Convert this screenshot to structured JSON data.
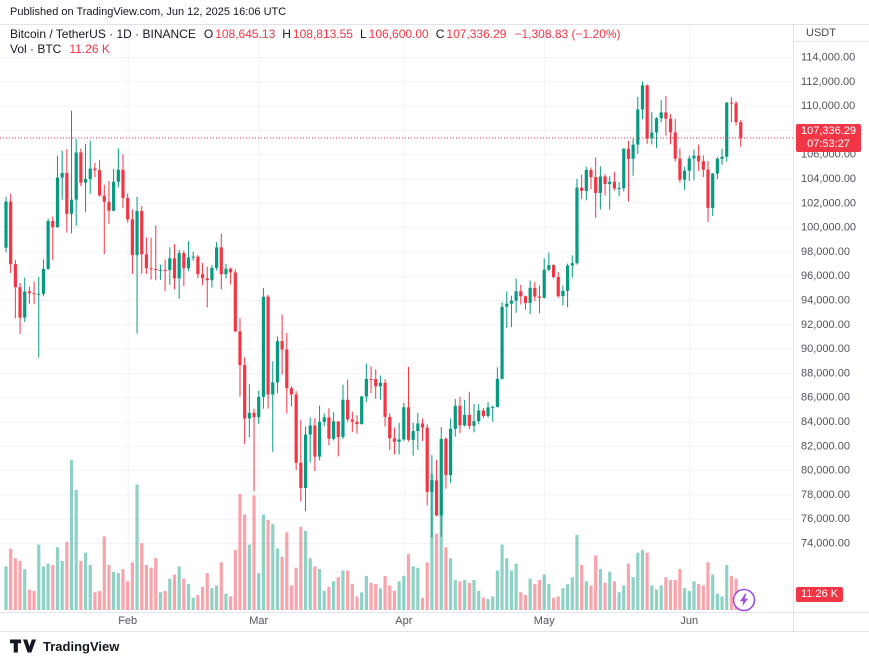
{
  "published_bar": {
    "text": "Published on TradingView.com, Jun 12, 2025 16:06 UTC"
  },
  "legend": {
    "title": "Bitcoin / TetherUS · 1D · BINANCE",
    "ohlc": [
      {
        "label": "O",
        "value": "108,645.13"
      },
      {
        "label": "H",
        "value": "108,813.55"
      },
      {
        "label": "L",
        "value": "106,600.00"
      },
      {
        "label": "C",
        "value": "107,336.29"
      }
    ],
    "change": "−1,308.83 (−1.20%)",
    "volume_label": "Vol · BTC",
    "volume_value": "11.26 K"
  },
  "axis": {
    "currency": "USDT",
    "price_badge": {
      "price": "107,336.29",
      "countdown": "07:53:27"
    },
    "volume_badge": "11.26 K"
  },
  "footer": {
    "brand": "TradingView"
  },
  "colors": {
    "up": "#089981",
    "down": "#F23645",
    "badge": "#F23645",
    "grid": "#f0f3fa",
    "separator": "#e0e3eb",
    "axis_text": "#50535E",
    "text": "#131722",
    "boost": "#9c4ddc"
  },
  "chart_data": {
    "type": "candlestick+volume",
    "title": "Bitcoin / TetherUS · 1D · BINANCE",
    "price_line": 107336.29,
    "y_axis": {
      "min": 74000,
      "max": 114000,
      "step": 2000,
      "unit": "USDT"
    },
    "x_ticks": [
      {
        "label": "Feb",
        "index": 26
      },
      {
        "label": "Mar",
        "index": 54
      },
      {
        "label": "Apr",
        "index": 85
      },
      {
        "label": "May",
        "index": 115
      },
      {
        "label": "Jun",
        "index": 146
      }
    ],
    "volume_in_thousands_btc": true,
    "last_volume_label": "11.26 K",
    "candles": [
      [
        98300,
        102500,
        97920,
        102100,
        32
      ],
      [
        102100,
        102750,
        96200,
        96950,
        45
      ],
      [
        96950,
        97300,
        92500,
        95050,
        38
      ],
      [
        95050,
        95400,
        91200,
        92550,
        36
      ],
      [
        92550,
        95850,
        92200,
        94700,
        30
      ],
      [
        94700,
        95100,
        93700,
        94560,
        15
      ],
      [
        94560,
        95500,
        93650,
        94500,
        14
      ],
      [
        94500,
        95900,
        89260,
        94510,
        48
      ],
      [
        94510,
        97350,
        94300,
        96560,
        32
      ],
      [
        96560,
        100700,
        96500,
        100500,
        34
      ],
      [
        100500,
        100870,
        97300,
        99990,
        33
      ],
      [
        99990,
        105860,
        99950,
        104080,
        46
      ],
      [
        104080,
        106300,
        102260,
        104450,
        36
      ],
      [
        104450,
        106420,
        99550,
        101090,
        50
      ],
      [
        101090,
        109580,
        99500,
        102260,
        110
      ],
      [
        102260,
        107240,
        100100,
        106140,
        88
      ],
      [
        106140,
        106450,
        103360,
        103650,
        36
      ],
      [
        103650,
        106850,
        101250,
        103960,
        42
      ],
      [
        103960,
        107120,
        102750,
        104820,
        33
      ],
      [
        104820,
        105300,
        104100,
        104680,
        13
      ],
      [
        104680,
        105500,
        102520,
        102600,
        14
      ],
      [
        102600,
        103480,
        97780,
        102080,
        54
      ],
      [
        102080,
        103800,
        100280,
        101340,
        33
      ],
      [
        101340,
        104800,
        101300,
        103730,
        28
      ],
      [
        103730,
        106460,
        103270,
        104720,
        27
      ],
      [
        104720,
        106000,
        101560,
        102400,
        30
      ],
      [
        102400,
        102780,
        100400,
        100640,
        21
      ],
      [
        100640,
        101460,
        96150,
        97690,
        35
      ],
      [
        97690,
        102500,
        91230,
        101330,
        92
      ],
      [
        101330,
        101740,
        96150,
        97760,
        49
      ],
      [
        97760,
        99150,
        96150,
        96610,
        33
      ],
      [
        96610,
        99120,
        95680,
        96550,
        31
      ],
      [
        96550,
        100140,
        95620,
        96460,
        38
      ],
      [
        96460,
        96900,
        95660,
        96480,
        13
      ],
      [
        96480,
        97330,
        94710,
        96470,
        14
      ],
      [
        96470,
        98350,
        95250,
        97430,
        23
      ],
      [
        97430,
        98590,
        94880,
        95780,
        26
      ],
      [
        95780,
        98120,
        94090,
        97860,
        32
      ],
      [
        97860,
        98080,
        95150,
        96610,
        23
      ],
      [
        96610,
        98840,
        96380,
        97500,
        19
      ],
      [
        97500,
        97970,
        97240,
        97570,
        9
      ],
      [
        97570,
        97700,
        95780,
        96120,
        11
      ],
      [
        96120,
        97040,
        95230,
        95780,
        17
      ],
      [
        95780,
        96750,
        93390,
        95630,
        27
      ],
      [
        95630,
        96880,
        95030,
        96640,
        16
      ],
      [
        96640,
        98770,
        96420,
        98330,
        18
      ],
      [
        98330,
        99470,
        94880,
        96120,
        35
      ],
      [
        96120,
        96960,
        95770,
        96580,
        12
      ],
      [
        96580,
        96670,
        95260,
        96270,
        10
      ],
      [
        96270,
        96500,
        91360,
        91420,
        44
      ],
      [
        91420,
        92500,
        86050,
        88640,
        85
      ],
      [
        88640,
        89300,
        82150,
        84250,
        70
      ],
      [
        84250,
        87070,
        82720,
        84710,
        48
      ],
      [
        84710,
        85050,
        78250,
        84350,
        84
      ],
      [
        84350,
        86530,
        83800,
        86030,
        27
      ],
      [
        86030,
        95000,
        85050,
        94270,
        70
      ],
      [
        94270,
        94420,
        85060,
        86220,
        66
      ],
      [
        86220,
        88960,
        81500,
        87220,
        63
      ],
      [
        87220,
        91000,
        86330,
        90620,
        45
      ],
      [
        90620,
        92810,
        87860,
        89930,
        39
      ],
      [
        89930,
        91280,
        84670,
        86740,
        57
      ],
      [
        86740,
        86890,
        85220,
        86220,
        18
      ],
      [
        86220,
        86500,
        80000,
        80600,
        31
      ],
      [
        80600,
        84120,
        77420,
        78530,
        61
      ],
      [
        78530,
        83600,
        76620,
        82930,
        58
      ],
      [
        82930,
        84340,
        80610,
        83670,
        38
      ],
      [
        83670,
        84280,
        79930,
        81110,
        32
      ],
      [
        81110,
        85310,
        80810,
        83970,
        30
      ],
      [
        83970,
        84670,
        83610,
        84340,
        14
      ],
      [
        84340,
        85100,
        82050,
        82580,
        17
      ],
      [
        82580,
        84760,
        82440,
        84010,
        21
      ],
      [
        84010,
        84020,
        81130,
        82720,
        24
      ],
      [
        82720,
        87030,
        82550,
        85790,
        29
      ],
      [
        85790,
        87450,
        83970,
        84170,
        29
      ],
      [
        84170,
        84800,
        83150,
        83980,
        19
      ],
      [
        83980,
        84500,
        83000,
        83790,
        10
      ],
      [
        83790,
        86100,
        83740,
        86060,
        13
      ],
      [
        86060,
        88770,
        85600,
        87500,
        25
      ],
      [
        87500,
        88540,
        86330,
        87490,
        20
      ],
      [
        87490,
        88290,
        85860,
        86900,
        19
      ],
      [
        86900,
        87790,
        85800,
        87190,
        16
      ],
      [
        87190,
        87490,
        83580,
        84380,
        25
      ],
      [
        84380,
        84680,
        81640,
        82620,
        18
      ],
      [
        82620,
        83510,
        81290,
        82330,
        14
      ],
      [
        82330,
        83880,
        81280,
        82520,
        21
      ],
      [
        82520,
        85550,
        82410,
        85170,
        25
      ],
      [
        85170,
        88500,
        82350,
        82490,
        41
      ],
      [
        82490,
        83900,
        81200,
        83210,
        32
      ],
      [
        83210,
        84720,
        81660,
        83840,
        31
      ],
      [
        83840,
        84250,
        82380,
        83500,
        9
      ],
      [
        83500,
        83770,
        77100,
        78210,
        35
      ],
      [
        78210,
        81240,
        74420,
        79160,
        100
      ],
      [
        79160,
        80820,
        76200,
        76270,
        56
      ],
      [
        76270,
        83540,
        74510,
        82570,
        85
      ],
      [
        82570,
        82700,
        78460,
        79590,
        46
      ],
      [
        79590,
        84250,
        78940,
        83400,
        38
      ],
      [
        83400,
        85860,
        82750,
        85290,
        22
      ],
      [
        85290,
        86010,
        83030,
        83680,
        21
      ],
      [
        83680,
        85780,
        83600,
        84540,
        22
      ],
      [
        84540,
        86450,
        83370,
        83640,
        20
      ],
      [
        83640,
        85440,
        83110,
        84030,
        22
      ],
      [
        84030,
        85430,
        83760,
        84900,
        14
      ],
      [
        84900,
        85120,
        84290,
        84450,
        9
      ],
      [
        84450,
        85600,
        84310,
        85160,
        8
      ],
      [
        85160,
        85310,
        83980,
        85200,
        10
      ],
      [
        85200,
        88450,
        85150,
        87510,
        29
      ],
      [
        87510,
        93820,
        87460,
        93440,
        48
      ],
      [
        93440,
        94720,
        91690,
        93700,
        38
      ],
      [
        93700,
        94350,
        91770,
        93940,
        29
      ],
      [
        93940,
        95770,
        92950,
        94720,
        34
      ],
      [
        94720,
        95250,
        93630,
        94310,
        13
      ],
      [
        94310,
        94360,
        93200,
        93750,
        11
      ],
      [
        93750,
        95600,
        92830,
        95000,
        23
      ],
      [
        95000,
        95490,
        93900,
        94280,
        19
      ],
      [
        94280,
        95200,
        92910,
        94180,
        22
      ],
      [
        94180,
        97440,
        94120,
        96490,
        26
      ],
      [
        96490,
        97910,
        96370,
        96870,
        19
      ],
      [
        96870,
        96940,
        95790,
        95890,
        9
      ],
      [
        95890,
        96300,
        94180,
        94320,
        10
      ],
      [
        94320,
        95200,
        93570,
        94750,
        16
      ],
      [
        94750,
        97000,
        93390,
        96840,
        19
      ],
      [
        96840,
        97680,
        95830,
        97030,
        24
      ],
      [
        97030,
        103970,
        96910,
        103250,
        55
      ],
      [
        103250,
        104320,
        102310,
        102970,
        33
      ],
      [
        102970,
        104960,
        102200,
        104700,
        21
      ],
      [
        104700,
        104900,
        103110,
        104110,
        18
      ],
      [
        104110,
        105740,
        100750,
        102810,
        40
      ],
      [
        102810,
        104990,
        101450,
        104170,
        30
      ],
      [
        104170,
        104350,
        102600,
        103540,
        20
      ],
      [
        103540,
        104180,
        101430,
        103740,
        28
      ],
      [
        103740,
        104550,
        103010,
        103190,
        21
      ],
      [
        103190,
        103720,
        102540,
        103210,
        13
      ],
      [
        103210,
        106480,
        102940,
        106450,
        18
      ],
      [
        106450,
        107110,
        102100,
        105620,
        34
      ],
      [
        105620,
        107310,
        104230,
        106790,
        24
      ],
      [
        106790,
        110720,
        106020,
        109680,
        42
      ],
      [
        109680,
        111980,
        108880,
        111670,
        44
      ],
      [
        111670,
        111740,
        106850,
        107290,
        42
      ],
      [
        107290,
        109460,
        106800,
        107790,
        18
      ],
      [
        107790,
        109060,
        106520,
        108960,
        15
      ],
      [
        108960,
        110450,
        108620,
        109440,
        18
      ],
      [
        109440,
        110790,
        107520,
        108920,
        24
      ],
      [
        108920,
        109300,
        106810,
        107800,
        22
      ],
      [
        107800,
        108910,
        105400,
        105640,
        22
      ],
      [
        105640,
        106470,
        103660,
        103900,
        30
      ],
      [
        103900,
        104980,
        103050,
        104640,
        16
      ],
      [
        104640,
        105900,
        103790,
        105650,
        14
      ],
      [
        105650,
        106380,
        103860,
        105880,
        21
      ],
      [
        105880,
        106790,
        104610,
        105420,
        19
      ],
      [
        105420,
        105910,
        104110,
        104730,
        18
      ],
      [
        104730,
        105440,
        100420,
        101580,
        35
      ],
      [
        101580,
        104470,
        100920,
        104400,
        26
      ],
      [
        104400,
        105770,
        103940,
        105620,
        12
      ],
      [
        105620,
        106450,
        105130,
        105790,
        10
      ],
      [
        105790,
        110290,
        105390,
        110250,
        33
      ],
      [
        110250,
        110700,
        108630,
        110190,
        25
      ],
      [
        110190,
        110370,
        108370,
        108645.13,
        23
      ],
      [
        108645.13,
        108813.55,
        106600,
        107336.29,
        11.26
      ]
    ]
  }
}
